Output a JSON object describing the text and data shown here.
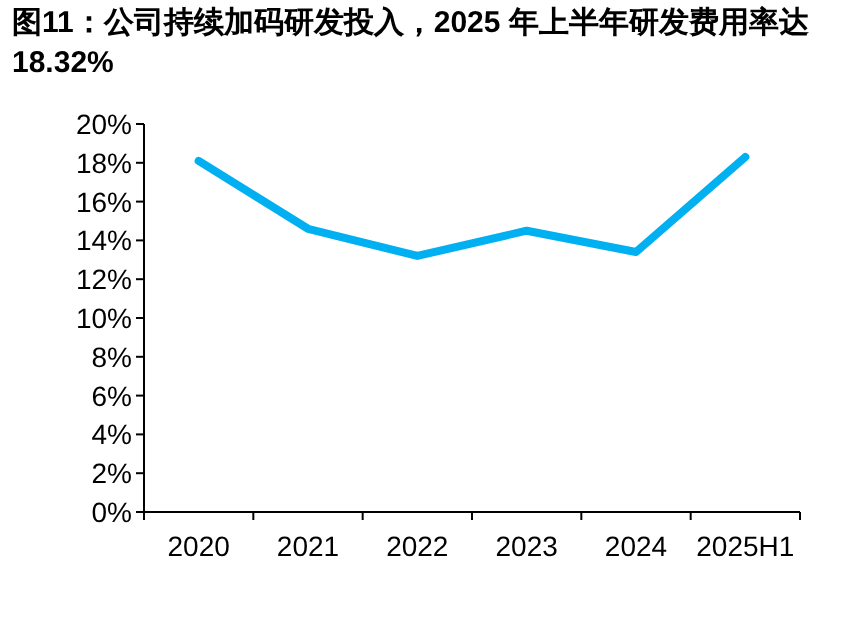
{
  "chart_data": {
    "type": "line",
    "title": "图11：公司持续加码研发投入，2025 年上半年研发费用率达 18.32%",
    "categories": [
      "2020",
      "2021",
      "2022",
      "2023",
      "2024",
      "2025H1"
    ],
    "series": [
      {
        "color": "#00b0f0",
        "values": [
          18.1,
          14.6,
          13.2,
          14.5,
          13.4,
          18.3
        ]
      }
    ],
    "ylim": [
      0,
      20
    ],
    "yticks": [
      {
        "value": 0,
        "label": "0%"
      },
      {
        "value": 2,
        "label": "2%"
      },
      {
        "value": 4,
        "label": "4%"
      },
      {
        "value": 6,
        "label": "6%"
      },
      {
        "value": 8,
        "label": "8%"
      },
      {
        "value": 10,
        "label": "10%"
      },
      {
        "value": 12,
        "label": "12%"
      },
      {
        "value": 14,
        "label": "14%"
      },
      {
        "value": 16,
        "label": "16%"
      },
      {
        "value": 18,
        "label": "18%"
      },
      {
        "value": 20,
        "label": "20%"
      }
    ],
    "marker": "none",
    "line_style": "solid"
  }
}
